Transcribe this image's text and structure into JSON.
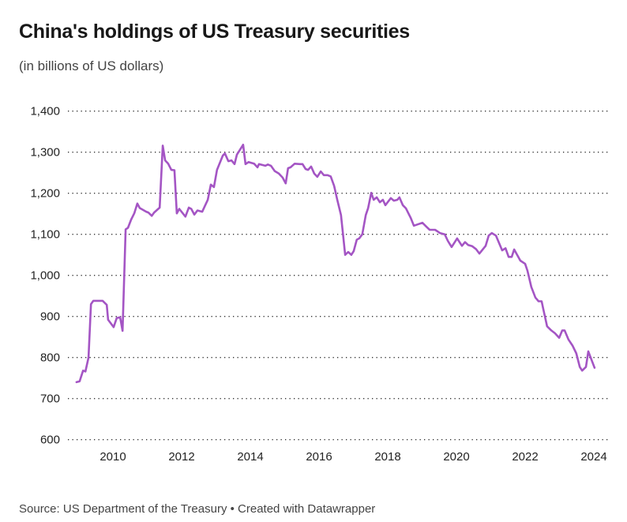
{
  "chart_data": {
    "type": "line",
    "title": "China's holdings of US Treasury securities",
    "subtitle": "(in billions of US dollars)",
    "xlabel": "",
    "ylabel": "",
    "source": "Source: US Department of the Treasury • Created with Datawrapper",
    "ylim": [
      600,
      1400
    ],
    "xlim": [
      2009,
      2024
    ],
    "grid": true,
    "line_color": "#a455c4",
    "y_ticks": [
      {
        "value": 600,
        "label": "600"
      },
      {
        "value": 700,
        "label": "700"
      },
      {
        "value": 800,
        "label": "800"
      },
      {
        "value": 900,
        "label": "900"
      },
      {
        "value": 1000,
        "label": "1,000"
      },
      {
        "value": 1100,
        "label": "1,100"
      },
      {
        "value": 1200,
        "label": "1,200"
      },
      {
        "value": 1300,
        "label": "1,300"
      },
      {
        "value": 1400,
        "label": "1,400"
      }
    ],
    "x_ticks": [
      {
        "value": 2010,
        "label": "2010"
      },
      {
        "value": 2012,
        "label": "2012"
      },
      {
        "value": 2014,
        "label": "2014"
      },
      {
        "value": 2016,
        "label": "2016"
      },
      {
        "value": 2018,
        "label": "2018"
      },
      {
        "value": 2020,
        "label": "2020"
      },
      {
        "value": 2022,
        "label": "2022"
      },
      {
        "value": 2024,
        "label": "2024"
      }
    ],
    "series": [
      {
        "name": "China's holdings",
        "x": [
          2008.94,
          2009.03,
          2009.13,
          2009.2,
          2009.29,
          2009.36,
          2009.43,
          2009.7,
          2009.82,
          2009.86,
          2010.02,
          2010.11,
          2010.21,
          2010.28,
          2010.37,
          2010.44,
          2010.53,
          2010.62,
          2010.71,
          2010.78,
          2010.97,
          2011.03,
          2011.13,
          2011.2,
          2011.36,
          2011.45,
          2011.52,
          2011.61,
          2011.7,
          2011.79,
          2011.86,
          2011.93,
          2012.11,
          2012.21,
          2012.28,
          2012.37,
          2012.46,
          2012.6,
          2012.76,
          2012.85,
          2012.94,
          2013.03,
          2013.2,
          2013.26,
          2013.36,
          2013.45,
          2013.54,
          2013.61,
          2013.79,
          2013.86,
          2013.95,
          2014.11,
          2014.21,
          2014.25,
          2014.44,
          2014.51,
          2014.6,
          2014.71,
          2014.83,
          2014.94,
          2015.03,
          2015.1,
          2015.17,
          2015.29,
          2015.45,
          2015.52,
          2015.61,
          2015.68,
          2015.77,
          2015.86,
          2015.95,
          2016.05,
          2016.14,
          2016.25,
          2016.34,
          2016.44,
          2016.53,
          2016.64,
          2016.69,
          2016.76,
          2016.85,
          2016.94,
          2017.01,
          2017.1,
          2017.17,
          2017.26,
          2017.36,
          2017.43,
          2017.52,
          2017.59,
          2017.68,
          2017.77,
          2017.86,
          2017.93,
          2018.09,
          2018.18,
          2018.28,
          2018.34,
          2018.44,
          2018.53,
          2018.67,
          2018.76,
          2018.87,
          2019.01,
          2019.13,
          2019.22,
          2019.38,
          2019.52,
          2019.66,
          2019.75,
          2019.86,
          2020.02,
          2020.16,
          2020.25,
          2020.34,
          2020.46,
          2020.57,
          2020.67,
          2020.85,
          2020.94,
          2021.03,
          2021.15,
          2021.33,
          2021.43,
          2021.52,
          2021.61,
          2021.68,
          2021.86,
          2022.0,
          2022.07,
          2022.18,
          2022.3,
          2022.39,
          2022.48,
          2022.53,
          2022.64,
          2022.76,
          2022.87,
          2022.99,
          2023.08,
          2023.15,
          2023.26,
          2023.38,
          2023.49,
          2023.59,
          2023.66,
          2023.77,
          2023.84,
          2024.02
        ],
        "values": [
          740,
          742,
          768,
          766,
          800,
          930,
          938,
          938,
          928,
          892,
          874,
          896,
          898,
          865,
          1112,
          1116,
          1136,
          1151,
          1175,
          1164,
          1155,
          1153,
          1145,
          1153,
          1165,
          1316,
          1280,
          1272,
          1257,
          1256,
          1151,
          1162,
          1143,
          1165,
          1162,
          1148,
          1158,
          1155,
          1184,
          1221,
          1215,
          1257,
          1292,
          1297,
          1278,
          1280,
          1271,
          1294,
          1318,
          1271,
          1276,
          1272,
          1263,
          1271,
          1267,
          1270,
          1267,
          1254,
          1248,
          1238,
          1224,
          1261,
          1263,
          1272,
          1271,
          1271,
          1259,
          1257,
          1265,
          1248,
          1240,
          1253,
          1244,
          1244,
          1241,
          1218,
          1184,
          1147,
          1107,
          1050,
          1057,
          1050,
          1059,
          1087,
          1090,
          1100,
          1147,
          1164,
          1201,
          1184,
          1190,
          1178,
          1184,
          1171,
          1188,
          1182,
          1184,
          1190,
          1171,
          1163,
          1140,
          1121,
          1124,
          1128,
          1118,
          1111,
          1111,
          1103,
          1100,
          1084,
          1069,
          1090,
          1072,
          1081,
          1074,
          1071,
          1064,
          1053,
          1072,
          1097,
          1103,
          1097,
          1061,
          1066,
          1045,
          1045,
          1063,
          1036,
          1028,
          1011,
          972,
          946,
          937,
          937,
          917,
          876,
          866,
          859,
          848,
          866,
          866,
          844,
          829,
          810,
          777,
          768,
          777,
          815,
          775
        ]
      }
    ]
  }
}
